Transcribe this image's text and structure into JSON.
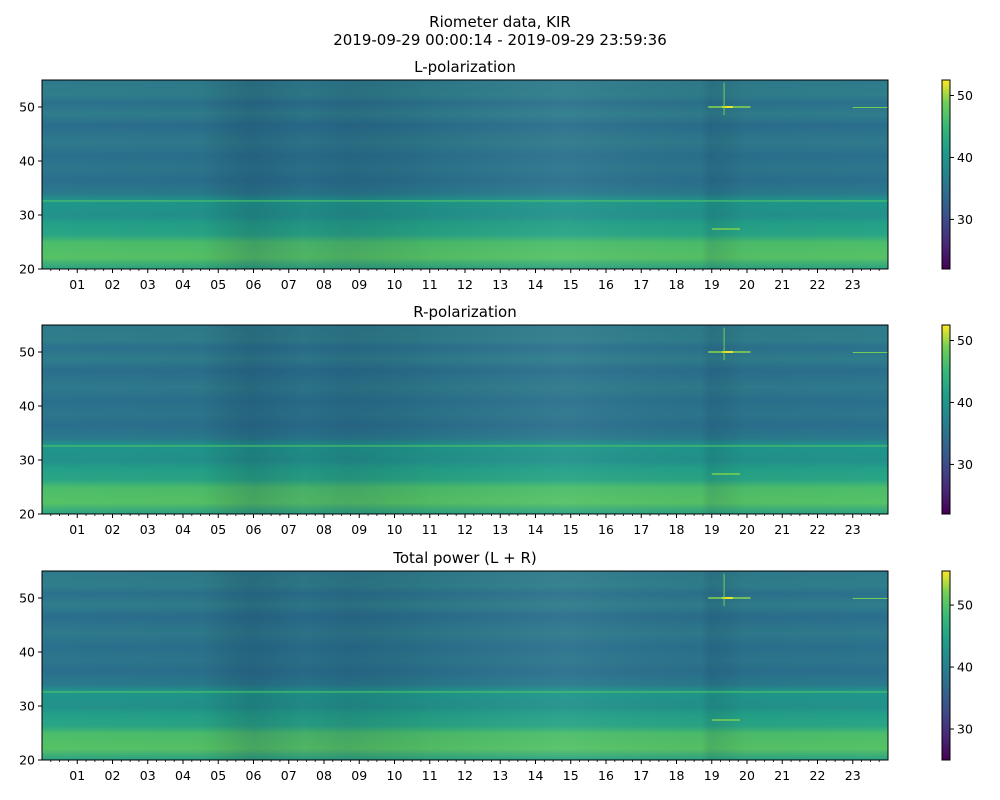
{
  "figure": {
    "title": "Riometer data, KIR",
    "subtitle": "2019-09-29 00:00:14 - 2019-09-29 23:59:36"
  },
  "chart_data": [
    {
      "type": "heatmap",
      "title": "L-polarization",
      "x_ticks": [
        "01",
        "02",
        "03",
        "04",
        "05",
        "06",
        "07",
        "08",
        "09",
        "10",
        "11",
        "12",
        "13",
        "14",
        "15",
        "16",
        "17",
        "18",
        "19",
        "20",
        "21",
        "22",
        "23"
      ],
      "x_range_hours": [
        0,
        24
      ],
      "y_ticks": [
        20,
        30,
        40,
        50
      ],
      "ylim": [
        20,
        55
      ],
      "colorbar": {
        "colormap": "viridis",
        "range": [
          22,
          52.5
        ],
        "ticks": [
          30,
          40,
          50
        ]
      }
    },
    {
      "type": "heatmap",
      "title": "R-polarization",
      "x_ticks": [
        "01",
        "02",
        "03",
        "04",
        "05",
        "06",
        "07",
        "08",
        "09",
        "10",
        "11",
        "12",
        "13",
        "14",
        "15",
        "16",
        "17",
        "18",
        "19",
        "20",
        "21",
        "22",
        "23"
      ],
      "x_range_hours": [
        0,
        24
      ],
      "y_ticks": [
        20,
        30,
        40,
        50
      ],
      "ylim": [
        20,
        55
      ],
      "colorbar": {
        "colormap": "viridis",
        "range": [
          22,
          52.5
        ],
        "ticks": [
          30,
          40,
          50
        ]
      }
    },
    {
      "type": "heatmap",
      "title": "Total power (L + R)",
      "x_ticks": [
        "01",
        "02",
        "03",
        "04",
        "05",
        "06",
        "07",
        "08",
        "09",
        "10",
        "11",
        "12",
        "13",
        "14",
        "15",
        "16",
        "17",
        "18",
        "19",
        "20",
        "21",
        "22",
        "23"
      ],
      "x_range_hours": [
        0,
        24
      ],
      "y_ticks": [
        20,
        30,
        40,
        50
      ],
      "ylim": [
        20,
        55
      ],
      "colorbar": {
        "colormap": "viridis",
        "range": [
          25,
          55.5
        ],
        "ticks": [
          30,
          40,
          50
        ]
      }
    }
  ]
}
